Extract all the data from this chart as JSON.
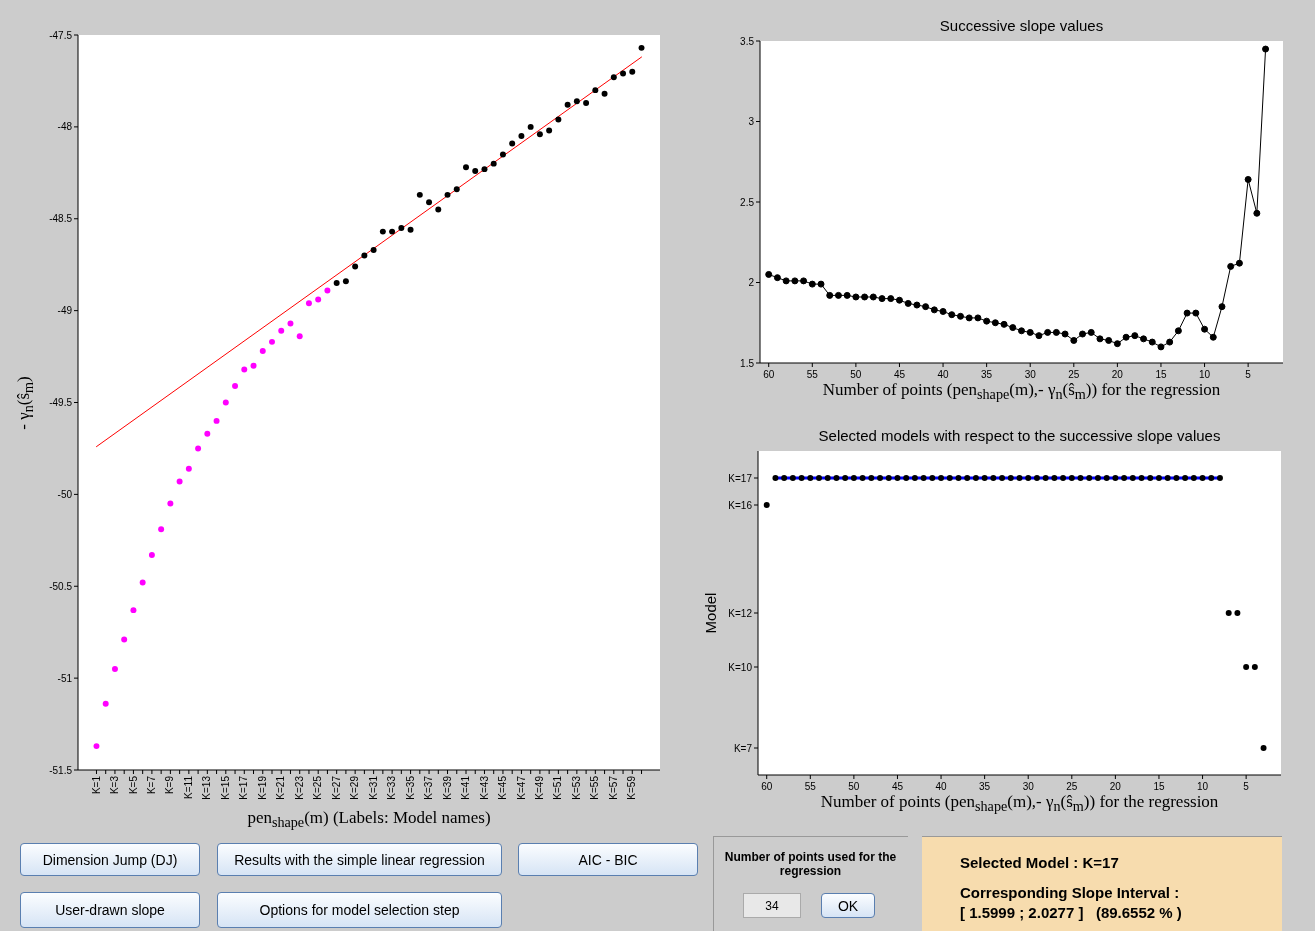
{
  "chart_data": [
    {
      "type": "scatter",
      "xlabel": "pen$_{shape}$(m) (Labels: Model names)",
      "ylabel": "- γ$_{n}$(ŝ$_{m}$)",
      "categories": [
        "K=1",
        null,
        "K=3",
        null,
        "K=5",
        null,
        "K=7",
        null,
        "K=9",
        null,
        "K=11",
        null,
        "K=13",
        null,
        "K=15",
        null,
        "K=17",
        null,
        "K=19",
        null,
        "K=21",
        null,
        "K=23",
        null,
        "K=25",
        null,
        "K=27",
        null,
        "K=29",
        null,
        "K=31",
        null,
        "K=33",
        null,
        "K=35",
        null,
        "K=37",
        null,
        "K=39",
        null,
        "K=41",
        null,
        "K=43",
        null,
        "K=45",
        null,
        "K=47",
        null,
        "K=49",
        null,
        "K=51",
        null,
        "K=53",
        null,
        "K=55",
        null,
        "K=57",
        null,
        "K=59",
        null
      ],
      "series": [
        {
          "type": "line",
          "color": "#ff0000",
          "marker": "none",
          "values": [
            -49.74,
            null,
            null,
            null,
            null,
            null,
            null,
            null,
            null,
            null,
            null,
            null,
            null,
            null,
            null,
            null,
            null,
            null,
            null,
            null,
            null,
            null,
            null,
            null,
            null,
            null,
            null,
            null,
            null,
            null,
            null,
            null,
            null,
            null,
            null,
            null,
            null,
            null,
            null,
            null,
            null,
            null,
            null,
            null,
            null,
            null,
            null,
            null,
            null,
            null,
            null,
            null,
            null,
            null,
            null,
            null,
            null,
            null,
            null,
            -47.62
          ]
        },
        {
          "type": "scatter",
          "color": "#ff00ff",
          "values": [
            -51.37,
            -51.14,
            -50.95,
            -50.79,
            -50.63,
            -50.48,
            -50.33,
            -50.19,
            -50.05,
            -49.93,
            -49.86,
            -49.75,
            -49.67,
            -49.6,
            -49.5,
            -49.41,
            -49.32,
            -49.3,
            -49.22,
            -49.17,
            -49.11,
            -49.07,
            -49.14,
            -48.96,
            -48.94,
            -48.89,
            null,
            null,
            null,
            null,
            null,
            null,
            null,
            null,
            null,
            null,
            null,
            null,
            null,
            null,
            null,
            null,
            null,
            null,
            null,
            null,
            null,
            null,
            null,
            null,
            null,
            null,
            null,
            null,
            null,
            null,
            null,
            null,
            null,
            null
          ]
        },
        {
          "type": "scatter",
          "color": "#000000",
          "values": [
            null,
            null,
            null,
            null,
            null,
            null,
            null,
            null,
            null,
            null,
            null,
            null,
            null,
            null,
            null,
            null,
            null,
            null,
            null,
            null,
            null,
            null,
            null,
            null,
            null,
            null,
            -48.85,
            -48.84,
            -48.76,
            -48.7,
            -48.67,
            -48.57,
            -48.57,
            -48.55,
            -48.56,
            -48.37,
            -48.41,
            -48.45,
            -48.37,
            -48.34,
            -48.22,
            -48.24,
            -48.23,
            -48.2,
            -48.15,
            -48.09,
            -48.05,
            -48.0,
            -48.04,
            -48.02,
            -47.96,
            -47.88,
            -47.86,
            -47.87,
            -47.8,
            -47.82,
            -47.73,
            -47.71,
            -47.7,
            -47.57
          ]
        }
      ],
      "ylim": [
        -51.5,
        -47.5
      ],
      "yticks": [
        -51.5,
        -51,
        -50.5,
        -50,
        -49.5,
        -49,
        -48.5,
        -48,
        -47.5
      ],
      "marker": "circle"
    },
    {
      "type": "line",
      "title": "Successive slope values",
      "xlabel": "Number of points (pen$_{shape}$(m),- γ$_{n}$(ŝ$_{m}$)) for the regression",
      "x": [
        60,
        59,
        58,
        57,
        56,
        55,
        54,
        53,
        52,
        51,
        50,
        49,
        48,
        47,
        46,
        45,
        44,
        43,
        42,
        41,
        40,
        39,
        38,
        37,
        36,
        35,
        34,
        33,
        32,
        31,
        30,
        29,
        28,
        27,
        26,
        25,
        24,
        23,
        22,
        21,
        20,
        19,
        18,
        17,
        16,
        15,
        14,
        13,
        12,
        11,
        10,
        9,
        8,
        7,
        6,
        5,
        4,
        3
      ],
      "values": [
        2.05,
        2.03,
        2.01,
        2.01,
        2.01,
        1.99,
        1.99,
        1.92,
        1.92,
        1.92,
        1.91,
        1.91,
        1.91,
        1.9,
        1.9,
        1.89,
        1.87,
        1.86,
        1.85,
        1.83,
        1.82,
        1.8,
        1.79,
        1.78,
        1.78,
        1.76,
        1.75,
        1.74,
        1.72,
        1.7,
        1.69,
        1.67,
        1.69,
        1.69,
        1.68,
        1.64,
        1.68,
        1.69,
        1.65,
        1.64,
        1.62,
        1.66,
        1.67,
        1.65,
        1.63,
        1.6,
        1.63,
        1.7,
        1.81,
        1.81,
        1.71,
        1.66,
        1.85,
        2.1,
        2.12,
        2.64,
        2.43,
        3.45
      ],
      "color": "#000000",
      "marker": "circle",
      "xlim": [
        61,
        1
      ],
      "xticks": [
        60,
        55,
        50,
        45,
        40,
        35,
        30,
        25,
        20,
        15,
        10,
        5
      ],
      "ylim": [
        1.5,
        3.5
      ],
      "yticks": [
        1.5,
        2,
        2.5,
        3,
        3.5
      ]
    },
    {
      "type": "scatter",
      "title": "Selected models with respect to the successive slope values",
      "xlabel": "Number of points (pen$_{shape}$(m),- γ$_{n}$(ŝ$_{m}$)) for the regression",
      "ylabel": "Model",
      "series": [
        {
          "type": "line",
          "color": "#0000ff",
          "marker": "none",
          "x": [
            59,
            8
          ],
          "values": [
            17,
            17
          ]
        },
        {
          "type": "scatter",
          "color": "#000000",
          "x": [
            60,
            59,
            58,
            57,
            56,
            55,
            54,
            53,
            52,
            51,
            50,
            49,
            48,
            47,
            46,
            45,
            44,
            43,
            42,
            41,
            40,
            39,
            38,
            37,
            36,
            35,
            34,
            33,
            32,
            31,
            30,
            29,
            28,
            27,
            26,
            25,
            24,
            23,
            22,
            21,
            20,
            19,
            18,
            17,
            16,
            15,
            14,
            13,
            12,
            11,
            10,
            9,
            8,
            7,
            6,
            5,
            4,
            3
          ],
          "values": [
            16,
            17,
            17,
            17,
            17,
            17,
            17,
            17,
            17,
            17,
            17,
            17,
            17,
            17,
            17,
            17,
            17,
            17,
            17,
            17,
            17,
            17,
            17,
            17,
            17,
            17,
            17,
            17,
            17,
            17,
            17,
            17,
            17,
            17,
            17,
            17,
            17,
            17,
            17,
            17,
            17,
            17,
            17,
            17,
            17,
            17,
            17,
            17,
            17,
            17,
            17,
            17,
            17,
            12,
            12,
            10,
            10,
            7
          ]
        }
      ],
      "marker": "circle",
      "xlim": [
        61,
        1
      ],
      "xticks": [
        60,
        55,
        50,
        45,
        40,
        35,
        30,
        25,
        20,
        15,
        10,
        5
      ],
      "ylim": [
        6,
        18
      ],
      "yticks": [
        {
          "value": 7,
          "label": "K=7"
        },
        {
          "value": 10,
          "label": "K=10"
        },
        {
          "value": 12,
          "label": "K=12"
        },
        {
          "value": 16,
          "label": "K=16"
        },
        {
          "value": 17,
          "label": "K=17"
        }
      ]
    },
    {
      "type": "other",
      "annotations": [
        "Dimension Jump (DJ)",
        "Results with the simple linear regression",
        "AIC - BIC",
        "User-drawn slope",
        "Options for model selection step",
        "Number of points used for the regression",
        "34",
        "OK",
        "Selected Model : K=17",
        "Corresponding Slope Interval :",
        "[ 1.5999 ; 2.0277 ]   (89.6552 % )"
      ]
    }
  ]
}
